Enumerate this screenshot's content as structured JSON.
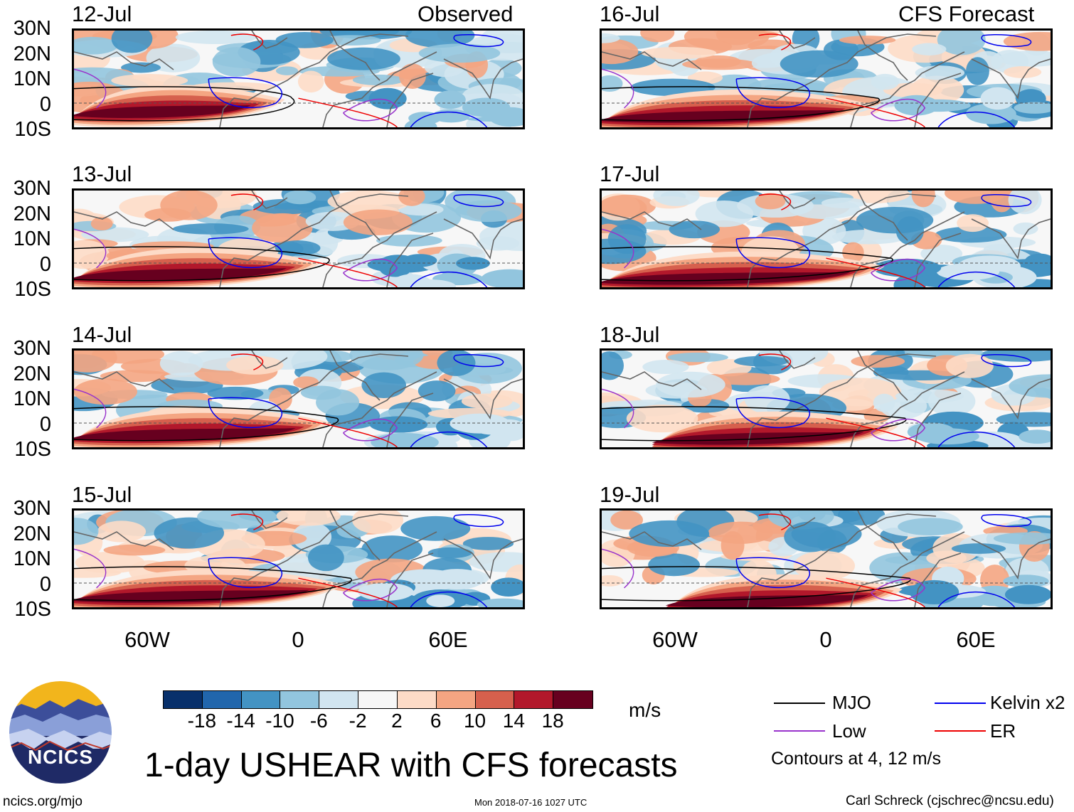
{
  "left_column": {
    "label": "Observed",
    "panels": [
      {
        "date": "12-Jul"
      },
      {
        "date": "13-Jul"
      },
      {
        "date": "14-Jul"
      },
      {
        "date": "15-Jul"
      }
    ]
  },
  "right_column": {
    "label": "CFS Forecast",
    "panels": [
      {
        "date": "16-Jul"
      },
      {
        "date": "17-Jul"
      },
      {
        "date": "18-Jul"
      },
      {
        "date": "19-Jul"
      }
    ]
  },
  "lat_labels": [
    "30N",
    "20N",
    "10N",
    "0",
    "10S"
  ],
  "lon_labels": [
    "60W",
    "0",
    "60E"
  ],
  "colorbar": {
    "colors": [
      "#08306b",
      "#2166ac",
      "#4393c3",
      "#92c5de",
      "#d1e5f0",
      "#f7f7f7",
      "#fddbc7",
      "#f4a582",
      "#d6604d",
      "#b2182b",
      "#67001f"
    ],
    "ticks": [
      "-18",
      "-14",
      "-10",
      "-6",
      "-2",
      "2",
      "6",
      "10",
      "14",
      "18"
    ],
    "units": "m/s"
  },
  "legend": {
    "items": [
      {
        "label": "MJO",
        "color": "#000000"
      },
      {
        "label": "Kelvin x2",
        "color": "#0000ee"
      },
      {
        "label": "Low",
        "color": "#9933cc"
      },
      {
        "label": "ER",
        "color": "#ee0000"
      }
    ],
    "note": "Contours at 4, 12 m/s"
  },
  "title": "1-day USHEAR with CFS forecasts",
  "logo": {
    "text": "NCICS"
  },
  "footer": {
    "left": "ncics.org/mjo",
    "center": "Mon 2018-07-16 1027 UTC",
    "right": "Carl Schreck (cjschrec@ncsu.edu)"
  },
  "colors": {
    "land_outline": "#666666",
    "logo_sun": "#f2b51c",
    "logo_bg": "#1f2a66"
  }
}
